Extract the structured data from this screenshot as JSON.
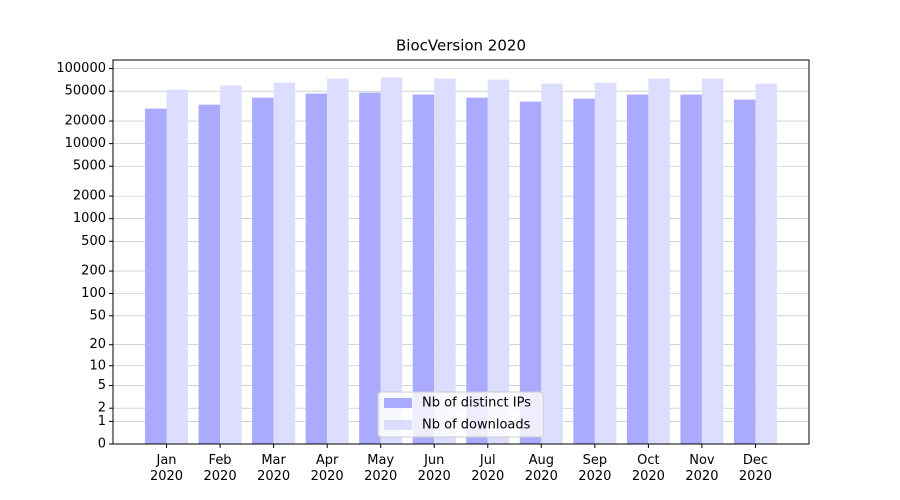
{
  "chart_data": {
    "type": "bar",
    "title": "BiocVersion 2020",
    "categories": [
      "Jan\n2020",
      "Feb\n2020",
      "Mar\n2020",
      "Apr\n2020",
      "May\n2020",
      "Jun\n2020",
      "Jul\n2020",
      "Aug\n2020",
      "Sep\n2020",
      "Oct\n2020",
      "Nov\n2020",
      "Dec\n2020"
    ],
    "series": [
      {
        "name": "Nb of distinct IPs",
        "color": "#aaaaff",
        "values": [
          29300,
          33000,
          41000,
          46400,
          47900,
          45000,
          41000,
          36300,
          39800,
          45000,
          45000,
          38600
        ]
      },
      {
        "name": "Nb of downloads",
        "color": "#ddddff",
        "values": [
          52500,
          59300,
          65000,
          73600,
          75900,
          73600,
          71300,
          63100,
          65000,
          73600,
          73600,
          63100
        ]
      }
    ],
    "yscale": "log1p",
    "ylim": [
      0,
      130000
    ],
    "yticks": [
      0,
      1,
      2,
      5,
      10,
      20,
      50,
      100,
      200,
      500,
      1000,
      2000,
      5000,
      10000,
      20000,
      50000,
      100000
    ],
    "grid": true,
    "legend": "lower center"
  }
}
